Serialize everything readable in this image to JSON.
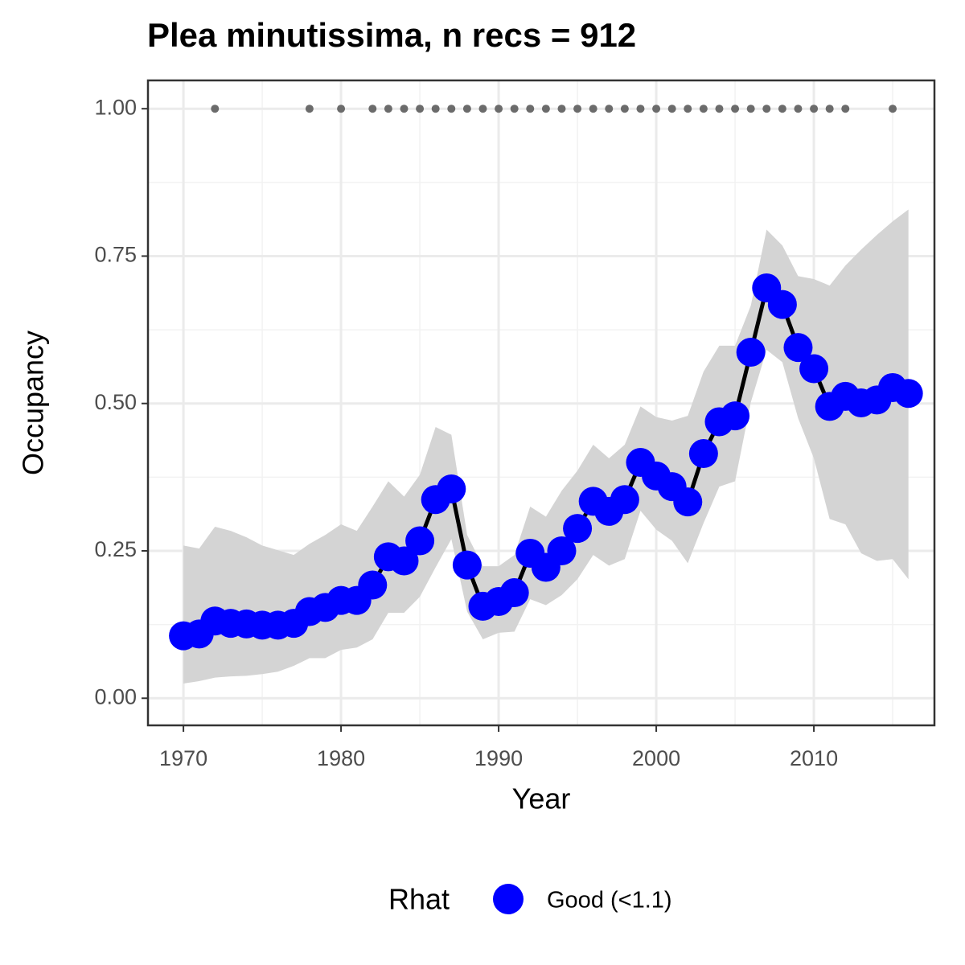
{
  "chart_data": {
    "type": "line",
    "title": "Plea minutissima, n recs = 912",
    "x_label": "Year",
    "y_label": "Occupancy",
    "x": [
      1970,
      1971,
      1972,
      1973,
      1974,
      1975,
      1976,
      1977,
      1978,
      1979,
      1980,
      1981,
      1982,
      1983,
      1984,
      1985,
      1986,
      1987,
      1988,
      1989,
      1990,
      1991,
      1992,
      1993,
      1994,
      1995,
      1996,
      1997,
      1998,
      1999,
      2000,
      2001,
      2002,
      2003,
      2004,
      2005,
      2006,
      2007,
      2008,
      2009,
      2010,
      2011,
      2012,
      2013,
      2014,
      2015,
      2016
    ],
    "series": [
      {
        "name": "Good (<1.1)",
        "color": "#0000ff",
        "line_color": "#000000",
        "band_color": "#d4d4d4",
        "values": [
          0.106,
          0.109,
          0.131,
          0.127,
          0.126,
          0.124,
          0.124,
          0.127,
          0.147,
          0.154,
          0.166,
          0.166,
          0.192,
          0.24,
          0.233,
          0.267,
          0.337,
          0.355,
          0.226,
          0.156,
          0.164,
          0.179,
          0.246,
          0.222,
          0.25,
          0.288,
          0.334,
          0.317,
          0.337,
          0.4,
          0.377,
          0.359,
          0.333,
          0.415,
          0.469,
          0.479,
          0.587,
          0.696,
          0.668,
          0.595,
          0.559,
          0.495,
          0.512,
          0.501,
          0.506,
          0.527,
          0.517
        ],
        "upper": [
          0.259,
          0.254,
          0.291,
          0.284,
          0.273,
          0.259,
          0.251,
          0.243,
          0.262,
          0.277,
          0.295,
          0.284,
          0.325,
          0.368,
          0.342,
          0.379,
          0.46,
          0.447,
          0.277,
          0.224,
          0.224,
          0.243,
          0.325,
          0.308,
          0.352,
          0.386,
          0.43,
          0.407,
          0.43,
          0.495,
          0.477,
          0.471,
          0.479,
          0.554,
          0.598,
          0.598,
          0.666,
          0.795,
          0.768,
          0.716,
          0.711,
          0.7,
          0.734,
          0.761,
          0.786,
          0.809,
          0.829
        ],
        "lower": [
          0.025,
          0.029,
          0.035,
          0.037,
          0.038,
          0.041,
          0.045,
          0.055,
          0.068,
          0.068,
          0.082,
          0.086,
          0.1,
          0.145,
          0.145,
          0.172,
          0.222,
          0.27,
          0.147,
          0.1,
          0.111,
          0.113,
          0.168,
          0.158,
          0.175,
          0.202,
          0.243,
          0.225,
          0.236,
          0.318,
          0.286,
          0.267,
          0.229,
          0.297,
          0.359,
          0.368,
          0.502,
          0.591,
          0.57,
          0.475,
          0.407,
          0.304,
          0.295,
          0.246,
          0.233,
          0.236,
          0.202
        ]
      }
    ],
    "records": {
      "color": "#6b6b6b",
      "x": [
        1972,
        1978,
        1980,
        1982,
        1983,
        1984,
        1985,
        1986,
        1987,
        1988,
        1989,
        1990,
        1991,
        1992,
        1993,
        1994,
        1995,
        1996,
        1997,
        1998,
        1999,
        2000,
        2001,
        2002,
        2003,
        2004,
        2005,
        2006,
        2007,
        2008,
        2009,
        2010,
        2011,
        2012,
        2015
      ],
      "values": [
        1,
        1,
        1,
        1,
        1,
        1,
        1,
        1,
        1,
        1,
        1,
        1,
        1,
        1,
        1,
        1,
        1,
        1,
        1,
        1,
        1,
        1,
        1,
        1,
        1,
        1,
        1,
        1,
        1,
        1,
        1,
        1,
        1,
        1,
        1
      ]
    },
    "legend_title": "Rhat",
    "legend": "bottom",
    "grid": true,
    "xlim": [
      1967.75,
      2017.65
    ],
    "ylim": [
      -0.046,
      1.048
    ],
    "xticks": [
      1970,
      1980,
      1990,
      2000,
      2010
    ],
    "xminor": [
      1975,
      1985,
      1995,
      2005,
      2015
    ],
    "yticks": [
      {
        "value": 0,
        "label": "0.00"
      },
      {
        "value": 0.25,
        "label": "0.25"
      },
      {
        "value": 0.5,
        "label": "0.50"
      },
      {
        "value": 0.75,
        "label": "0.75"
      },
      {
        "value": 1,
        "label": "1.00"
      }
    ],
    "yminor": [
      0.125,
      0.375,
      0.625,
      0.875
    ]
  }
}
